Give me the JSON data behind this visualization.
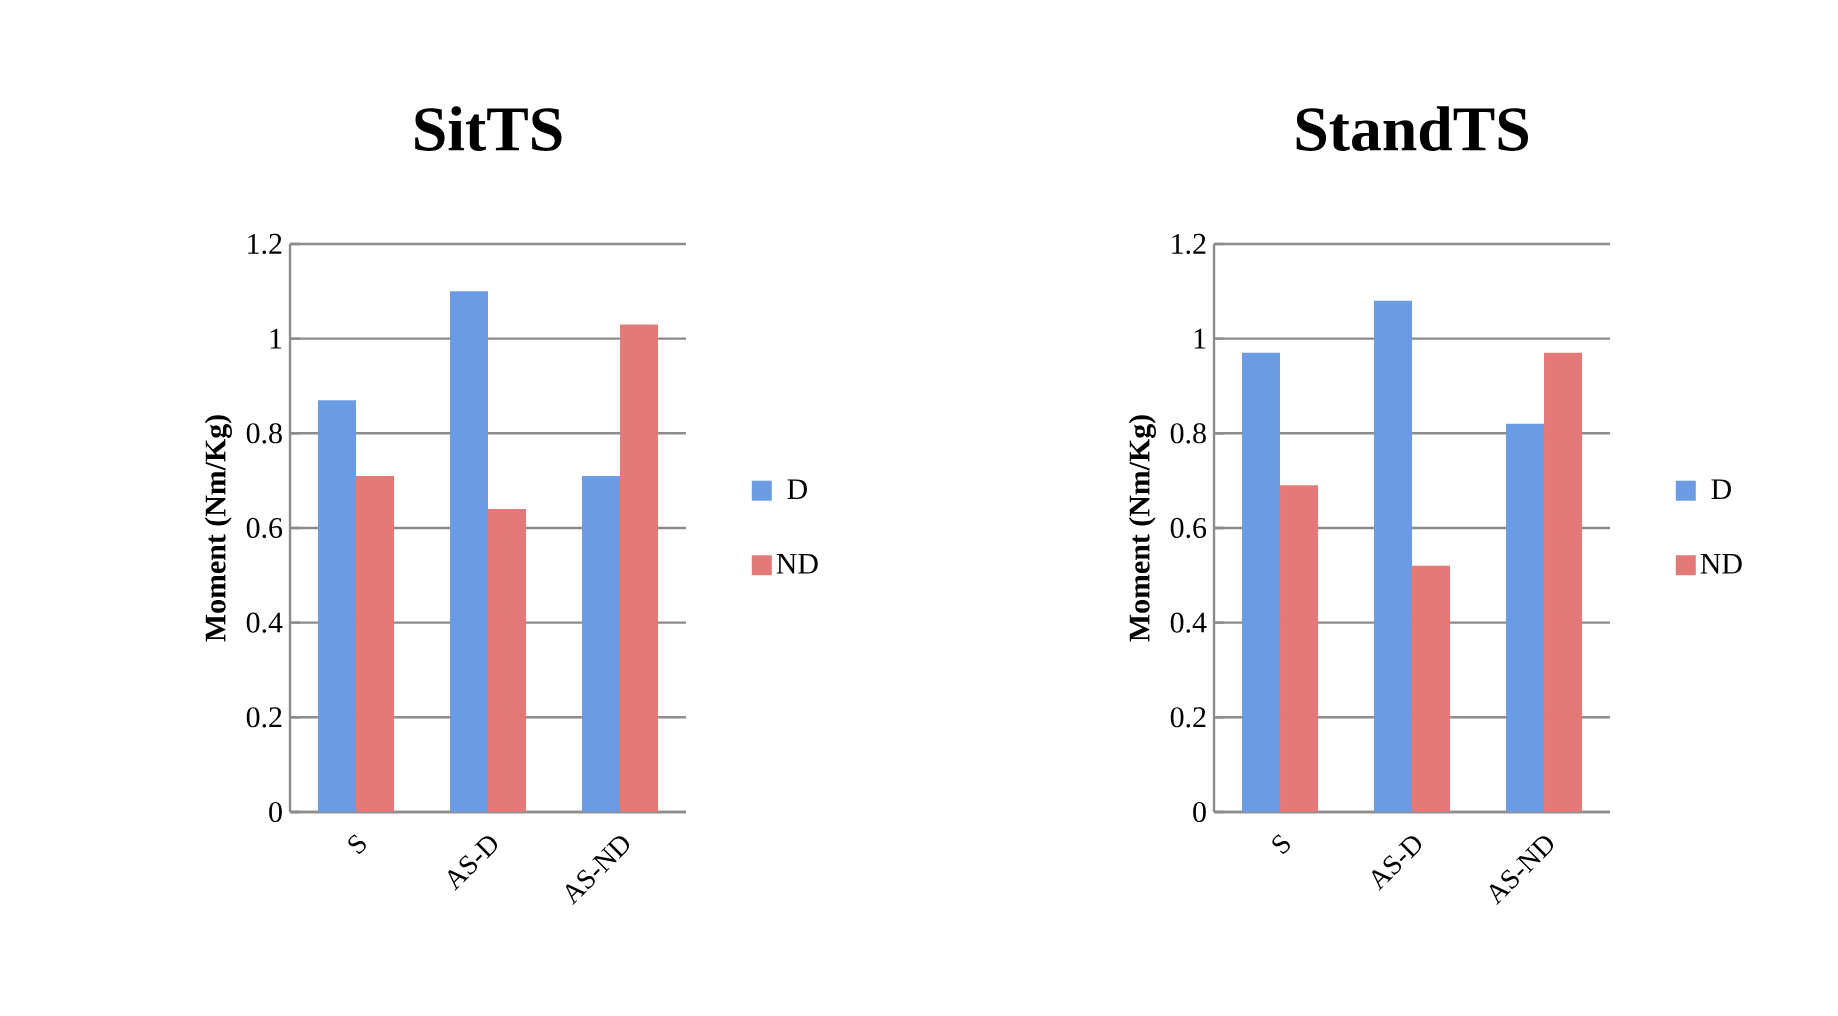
{
  "chart_data": [
    {
      "type": "bar",
      "title": "SitTS",
      "ylabel": "Moment (Nm/Kg)",
      "categories": [
        "S",
        "AS-D",
        "AS-ND"
      ],
      "series": [
        {
          "name": "D",
          "color": "#6b9be3",
          "values": [
            0.87,
            1.1,
            0.71
          ]
        },
        {
          "name": "ND",
          "color": "#e37a78",
          "values": [
            0.71,
            0.64,
            1.03
          ]
        }
      ],
      "ylim": [
        0,
        1.2
      ],
      "yticks": [
        0,
        0.2,
        0.4,
        0.6,
        0.8,
        1,
        1.2
      ],
      "grid": "y",
      "legend": "right"
    },
    {
      "type": "bar",
      "title": "StandTS",
      "ylabel": "Moment (Nm/Kg)",
      "categories": [
        "S",
        "AS-D",
        "AS-ND"
      ],
      "series": [
        {
          "name": "D",
          "color": "#6b9be3",
          "values": [
            0.97,
            1.08,
            0.82
          ]
        },
        {
          "name": "ND",
          "color": "#e37a78",
          "values": [
            0.69,
            0.52,
            0.97
          ]
        }
      ],
      "ylim": [
        0,
        1.2
      ],
      "yticks": [
        0,
        0.2,
        0.4,
        0.6,
        0.8,
        1,
        1.2
      ],
      "grid": "y",
      "legend": "right"
    }
  ]
}
